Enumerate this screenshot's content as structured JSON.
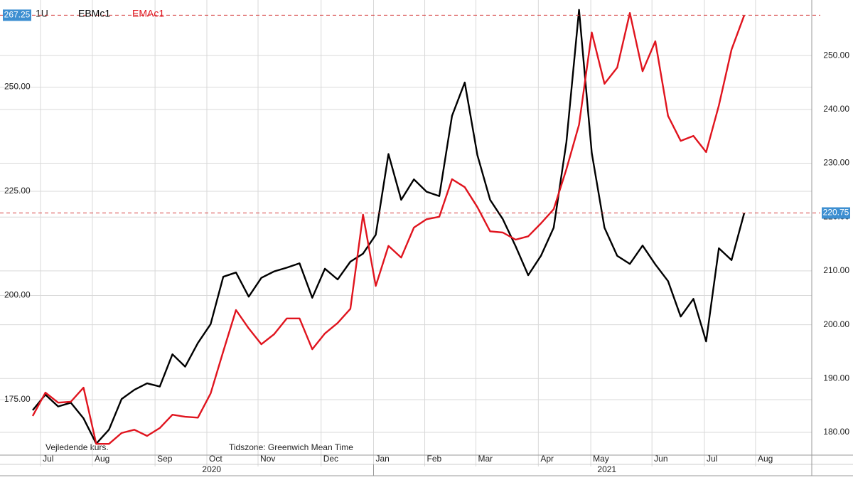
{
  "chart_data": {
    "type": "line",
    "interval": "1U",
    "x_axis_groups": [
      "2020",
      "2021"
    ],
    "annotations": [
      "Vejledende kurs.",
      "Tidszone: Greenwich Mean Time"
    ],
    "xlim": [
      0,
      62.4
    ],
    "xticks": [
      {
        "value": 0.63,
        "label": "Jul"
      },
      {
        "value": 4.78,
        "label": "Aug"
      },
      {
        "value": 9.8,
        "label": "Sep"
      },
      {
        "value": 13.95,
        "label": "Oct"
      },
      {
        "value": 18.05,
        "label": "Nov"
      },
      {
        "value": 23.1,
        "label": "Dec"
      },
      {
        "value": 27.3,
        "label": "Jan"
      },
      {
        "value": 31.4,
        "label": "Feb"
      },
      {
        "value": 35.5,
        "label": "Mar"
      },
      {
        "value": 40.5,
        "label": "Apr"
      },
      {
        "value": 44.7,
        "label": "May"
      },
      {
        "value": 49.6,
        "label": "Jun"
      },
      {
        "value": 53.8,
        "label": "Jul"
      },
      {
        "value": 57.9,
        "label": "Aug"
      }
    ],
    "ylim": [
      161.7,
      270.05
    ],
    "yticks": [
      {
        "value": 175,
        "label": "175.00"
      },
      {
        "value": 200,
        "label": "200.00"
      },
      {
        "value": 225,
        "label": "225.00"
      },
      {
        "value": 250,
        "label": "250.00"
      }
    ],
    "y2lim": [
      175.77,
      259.66
    ],
    "y2ticks": [
      {
        "value": 180,
        "label": "180.00"
      },
      {
        "value": 190,
        "label": "190.00"
      },
      {
        "value": 200,
        "label": "200.00"
      },
      {
        "value": 210,
        "label": "210.00"
      },
      {
        "value": 220,
        "label": "220.00"
      },
      {
        "value": 230,
        "label": "230.00"
      },
      {
        "value": 240,
        "label": "240.00"
      },
      {
        "value": 250,
        "label": "250.00"
      }
    ],
    "grid": true,
    "series": [
      {
        "name": "EBMc1",
        "color": "#000000",
        "axis": "y2",
        "values": [
          184.1,
          187.0,
          184.8,
          185.5,
          182.6,
          177.9,
          180.5,
          186.2,
          187.9,
          189.1,
          188.5,
          194.5,
          192.2,
          196.6,
          200.1,
          208.9,
          209.7,
          205.2,
          208.7,
          209.9,
          210.6,
          211.4,
          205.0,
          210.4,
          208.4,
          211.7,
          213.2,
          216.7,
          231.7,
          223.2,
          227.0,
          224.7,
          223.9,
          238.8,
          245.0,
          231.5,
          223.2,
          219.6,
          214.6,
          209.2,
          212.8,
          218.0,
          233.9,
          258.5,
          231.9,
          218.0,
          212.8,
          211.3,
          214.7,
          211.2,
          208.1,
          201.5,
          204.8,
          196.9,
          214.2,
          212.0,
          220.75
        ]
      },
      {
        "name": "EMAc1",
        "color": "#e0141e",
        "values": [
          171.1,
          176.7,
          174.3,
          174.5,
          177.9,
          164.4,
          164.4,
          167.0,
          167.8,
          166.3,
          168.2,
          171.4,
          170.9,
          170.7,
          176.5,
          186.6,
          196.5,
          192.1,
          188.3,
          190.7,
          194.5,
          194.5,
          187.1,
          190.9,
          193.4,
          196.8,
          219.4,
          202.3,
          211.9,
          209.1,
          216.3,
          218.3,
          218.9,
          227.9,
          226.0,
          221.2,
          215.4,
          215.1,
          213.4,
          214.2,
          217.3,
          220.7,
          230.3,
          241.0,
          263.1,
          250.8,
          254.7,
          267.8,
          253.8,
          261.0,
          243.1,
          237.1,
          238.3,
          234.4,
          245.6,
          259.0,
          267.25
        ]
      }
    ]
  }
}
